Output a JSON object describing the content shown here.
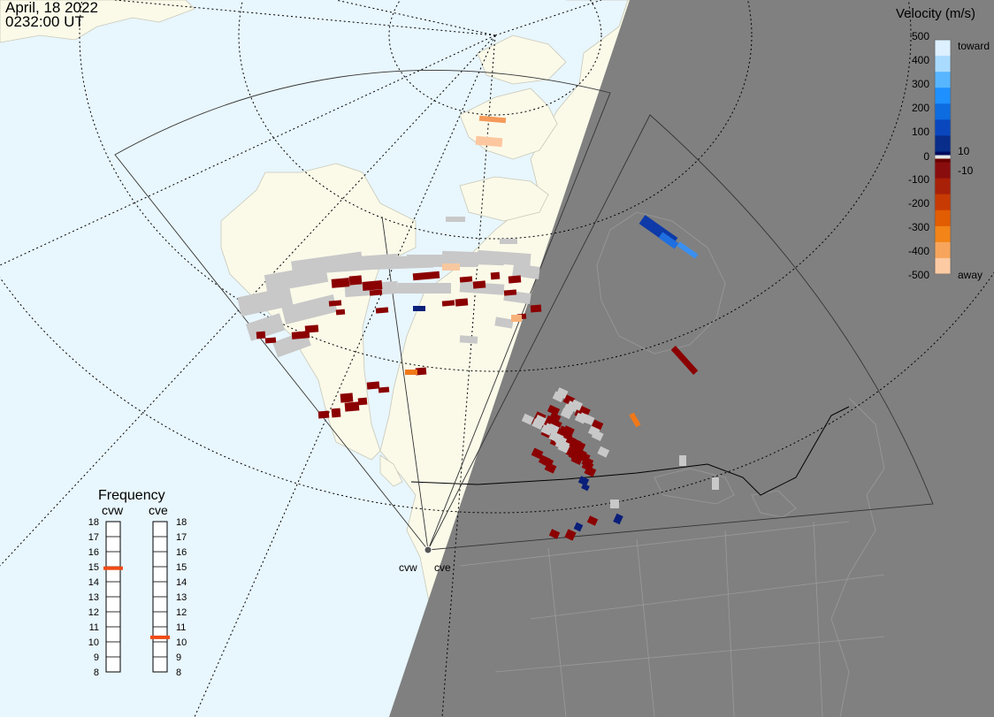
{
  "header": {
    "date": "April, 18 2022",
    "time": "0232:00 UT"
  },
  "colors": {
    "ocean": "#e8f6fd",
    "land": "#fbfae9",
    "night": "#808080",
    "ground_scatter": "#c8c8c8",
    "radar_fov": "#333333"
  },
  "velocity_scale": {
    "title": "Velocity (m/s)",
    "ticks": [
      "500",
      "400",
      "300",
      "200",
      "100",
      "10",
      "0",
      "-10",
      "-100",
      "-200",
      "-300",
      "-400",
      "-500"
    ],
    "toward_label": "toward",
    "away_label": "away",
    "bands": [
      "#dcf0ff",
      "#a9dbff",
      "#57b6ff",
      "#1e90ff",
      "#0d6ce0",
      "#0a47bf",
      "#082d8a",
      "#000a5e",
      "#e8e8e8",
      "#6b0000",
      "#8a0d0d",
      "#a82008",
      "#c83a04",
      "#e25c02",
      "#f28418",
      "#f7a55c",
      "#fccba3"
    ]
  },
  "frequency_panel": {
    "title": "Frequency",
    "radars": [
      {
        "name": "cvw",
        "frequency_mhz": 14.9
      },
      {
        "name": "cve",
        "frequency_mhz": 10.3
      }
    ],
    "ticks": [
      "18",
      "17",
      "16",
      "15",
      "14",
      "13",
      "12",
      "11",
      "10",
      "9",
      "8"
    ],
    "marker_color": "#f04a16"
  },
  "radar_sites": [
    {
      "name": "cvw"
    },
    {
      "name": "cve"
    }
  ]
}
